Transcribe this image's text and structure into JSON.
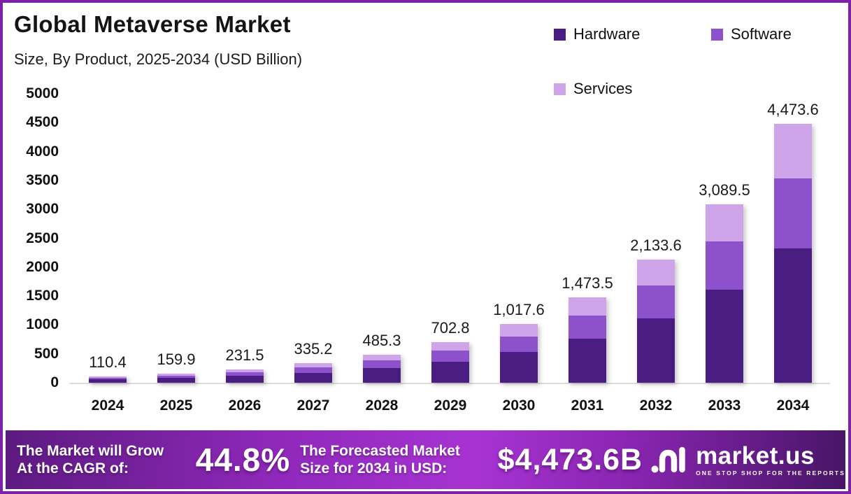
{
  "frame": {
    "border_color": "#7c22a8",
    "background": "#ffffff"
  },
  "header": {
    "title": "Global Metaverse Market",
    "subtitle": "Size, By Product, 2025-2034 (USD Billion)"
  },
  "legend": {
    "position": "top-right",
    "items": [
      {
        "label": "Hardware",
        "color": "#4a1d82"
      },
      {
        "label": "Software",
        "color": "#8d51cc"
      },
      {
        "label": "Services",
        "color": "#cda5e8"
      }
    ]
  },
  "chart_data": {
    "type": "bar",
    "stacked": true,
    "title": "Global Metaverse Market Size, By Product, 2025-2034 (USD Billion)",
    "categories": [
      "2024",
      "2025",
      "2026",
      "2027",
      "2028",
      "2029",
      "2030",
      "2031",
      "2032",
      "2033",
      "2034"
    ],
    "series": [
      {
        "name": "Hardware",
        "color": "#4a1d82",
        "values": [
          57.4,
          83.1,
          120.4,
          174.3,
          252.4,
          365.5,
          529.2,
          766.2,
          1109.5,
          1606.5,
          2326.3
        ]
      },
      {
        "name": "Software",
        "color": "#8d51cc",
        "values": [
          29.8,
          43.2,
          62.5,
          90.5,
          131.0,
          189.8,
          274.8,
          397.8,
          576.1,
          834.2,
          1207.9
        ]
      },
      {
        "name": "Services",
        "color": "#cda5e8",
        "values": [
          23.2,
          33.6,
          48.6,
          70.4,
          101.9,
          147.5,
          213.6,
          309.5,
          448.0,
          648.8,
          939.4
        ]
      }
    ],
    "totals": [
      110.4,
      159.9,
      231.5,
      335.2,
      485.3,
      702.8,
      1017.6,
      1473.5,
      2133.6,
      3089.5,
      4473.6
    ],
    "total_labels": [
      "110.4",
      "159.9",
      "231.5",
      "335.2",
      "485.3",
      "702.8",
      "1,017.6",
      "1,473.5",
      "2,133.6",
      "3,089.5",
      "4,473.6"
    ],
    "xlabel": "",
    "ylabel": "",
    "ylim": [
      0,
      5000
    ],
    "ytick_step": 500,
    "grid": false,
    "legend_position": "top-right"
  },
  "footer": {
    "cagr_text": "The Market will Grow\nAt the CAGR of:",
    "cagr_value": "44.8%",
    "forecast_text": "The Forecasted Market\nSize for 2034 in USD:",
    "forecast_value": "$4,473.6B",
    "logo_text": "market.us",
    "logo_tagline": "ONE STOP SHOP FOR THE REPORTS"
  }
}
